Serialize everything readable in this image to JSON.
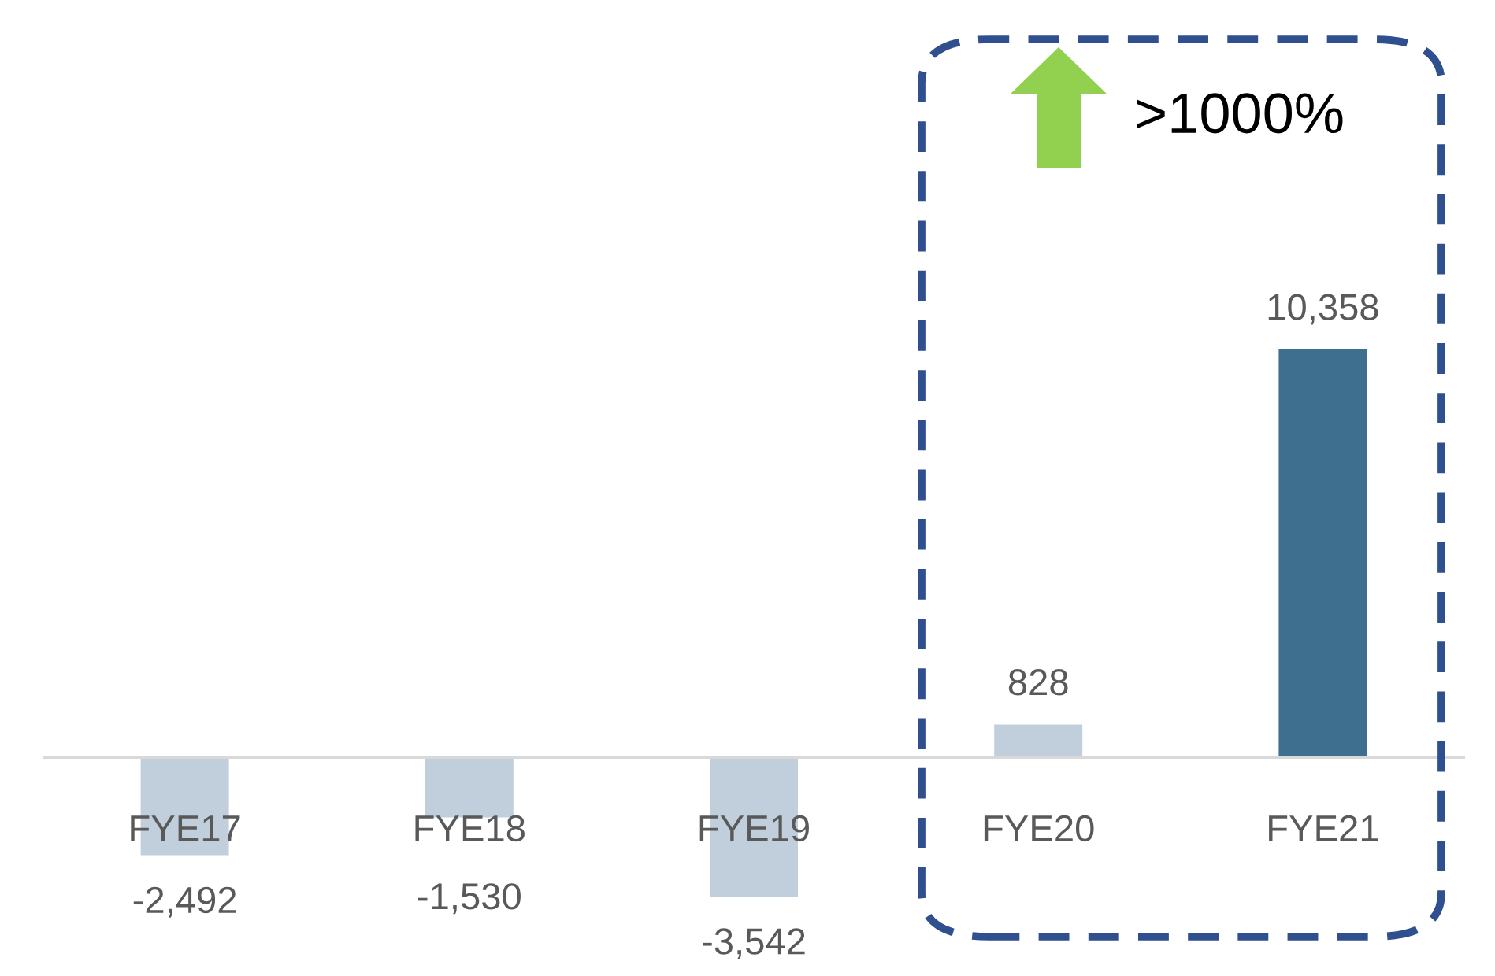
{
  "chart_data": {
    "type": "bar",
    "categories": [
      "FYE17",
      "FYE18",
      "FYE19",
      "FYE20",
      "FYE21"
    ],
    "values": [
      -2492,
      -1530,
      -3542,
      828,
      10358
    ],
    "colors": [
      "#c0cfdb",
      "#c0cfdb",
      "#c0cfdb",
      "#c0cfdb",
      "#3f6f8e"
    ],
    "value_labels": [
      "-2,492",
      "-1,530",
      "-3,542",
      "828",
      "10,358"
    ],
    "annotations": [
      ">1000%"
    ],
    "grid": false
  }
}
